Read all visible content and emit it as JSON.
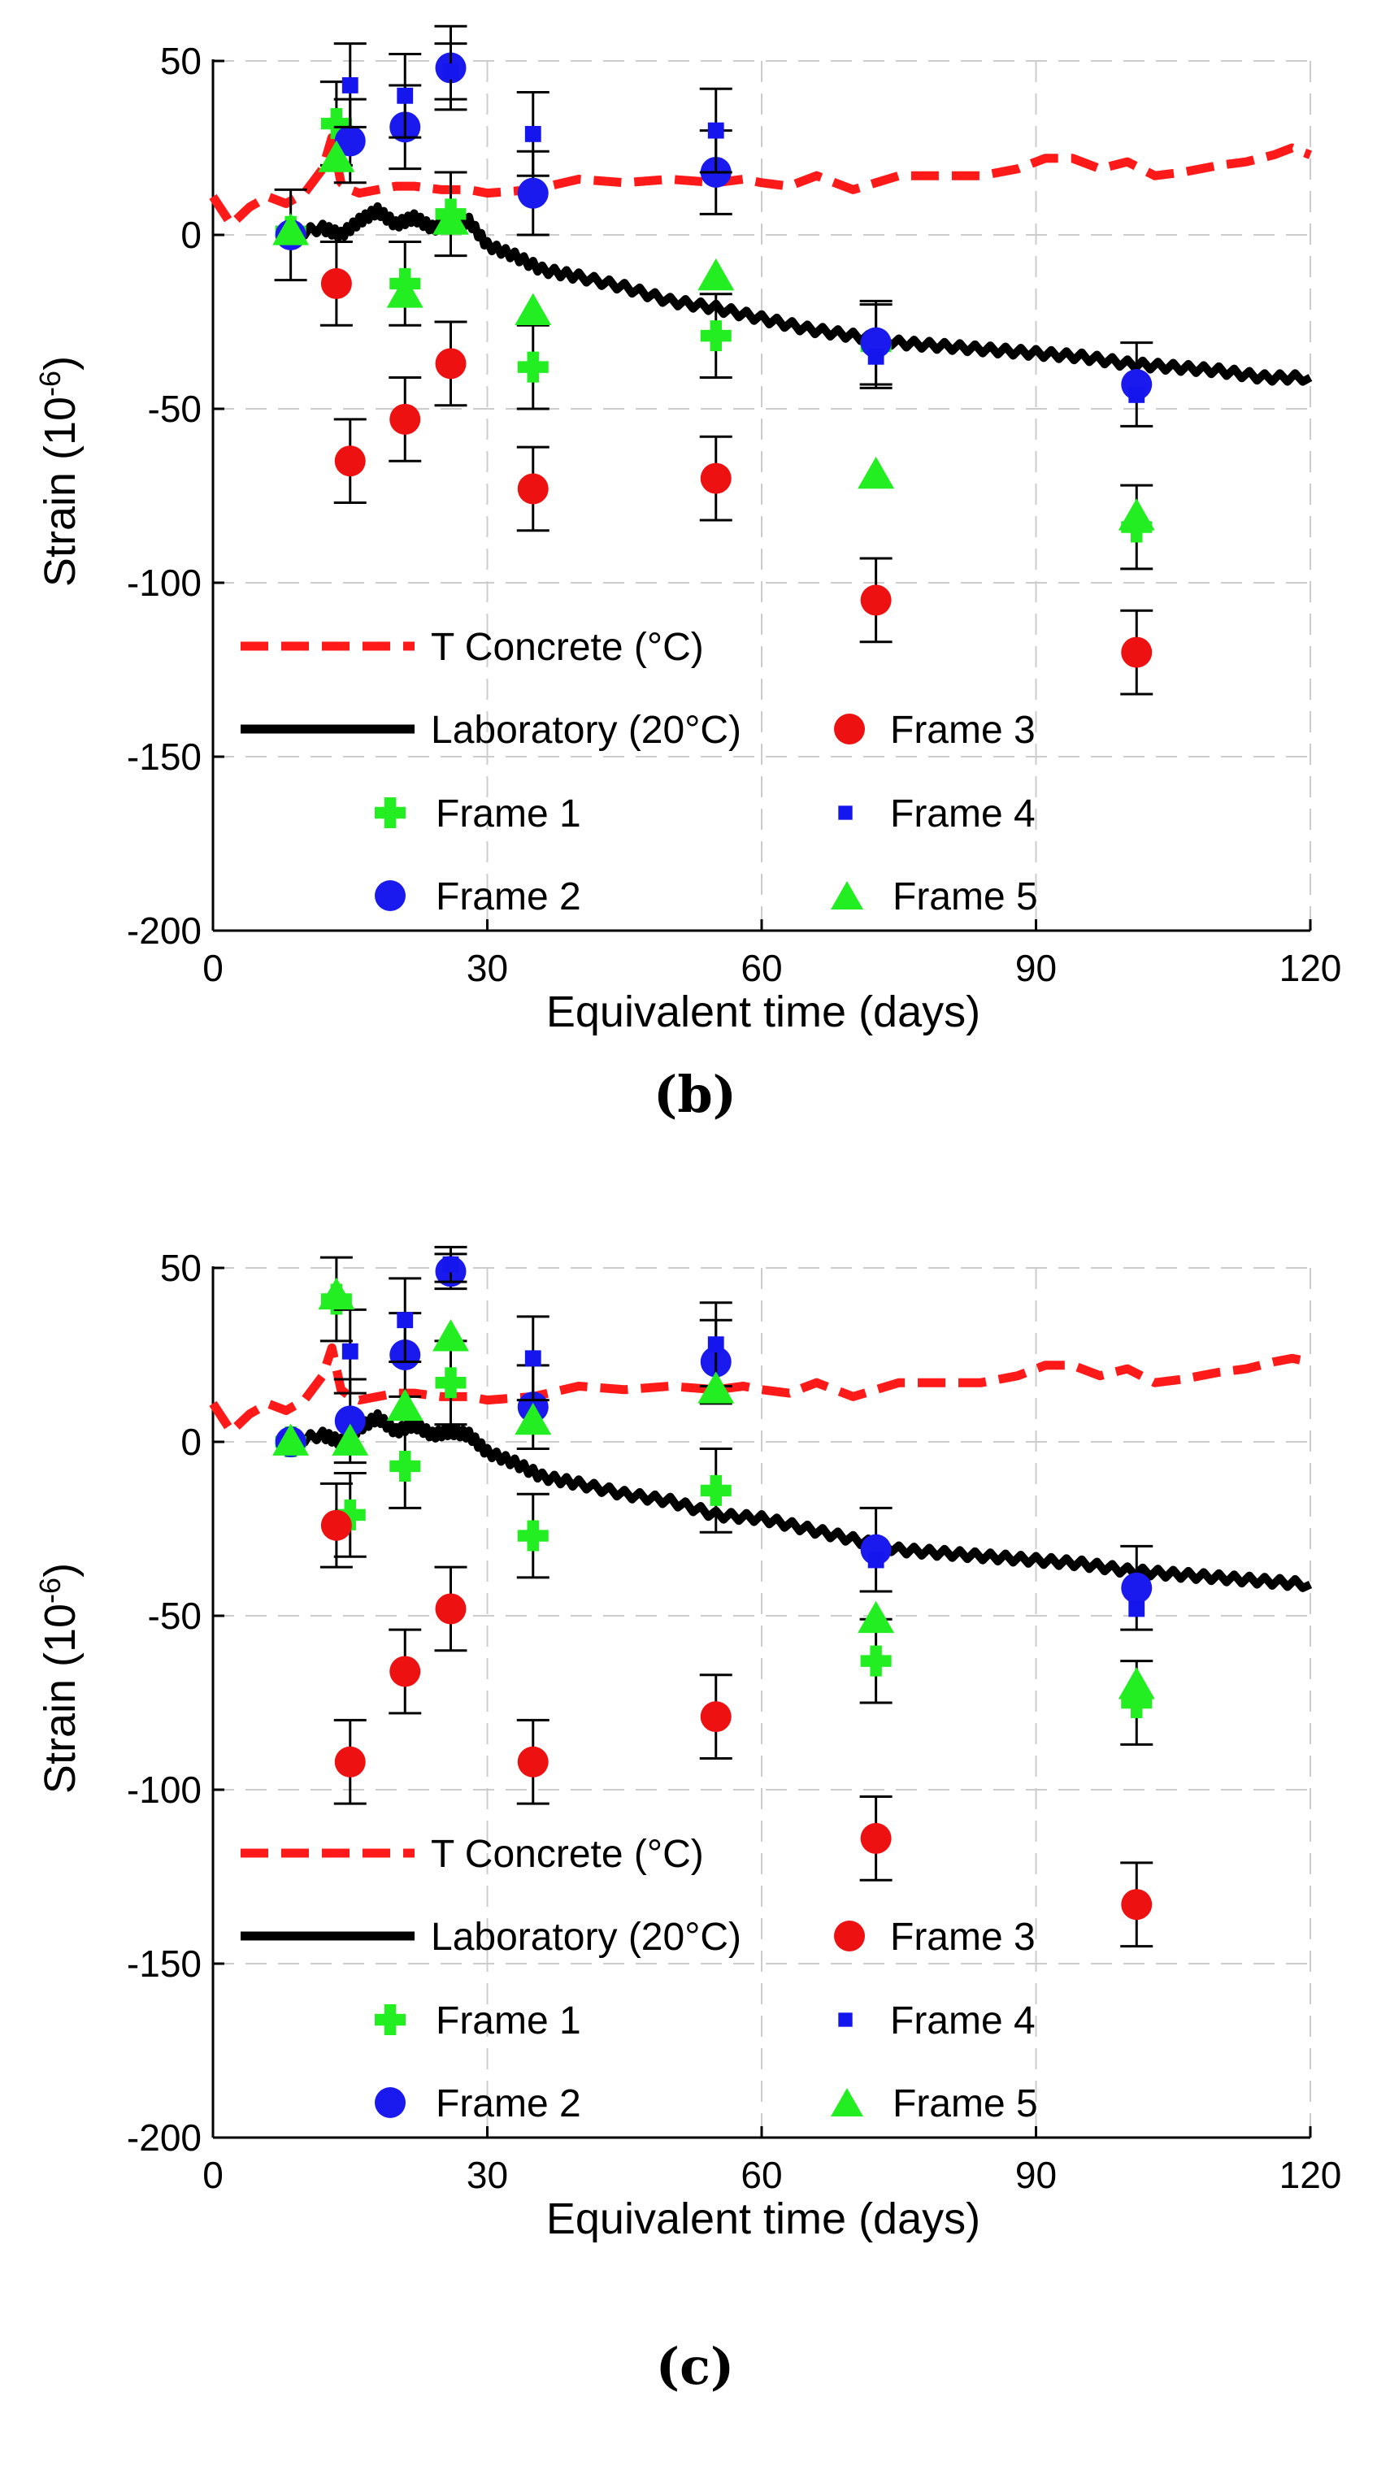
{
  "colors": {
    "temp": "#ff1a1a",
    "lab": "#000000",
    "frame1": "#22ee22",
    "frame2": "#1a1aee",
    "frame3": "#ee1111",
    "frame4": "#1515ee",
    "frame5": "#22ee22",
    "grid": "#cccccc",
    "error_bar": "#000000"
  },
  "chart_data": [
    {
      "panel_label": "(b)",
      "type": "scatter",
      "xlabel": "Equivalent time (days)",
      "ylabel_main": "Strain (10",
      "ylabel_sup": "-6",
      "ylabel_tail": ")",
      "xlim": [
        0,
        120
      ],
      "ylim": [
        -200,
        50
      ],
      "xticks": [
        0,
        30,
        60,
        90,
        120
      ],
      "yticks": [
        50,
        0,
        -50,
        -100,
        -150,
        -200
      ],
      "xtick_labels": [
        "0",
        "30",
        "60",
        "90",
        "120"
      ],
      "ytick_labels": [
        "50",
        "0",
        "-50",
        "-100",
        "-150",
        "-200"
      ],
      "grid": true,
      "legend": {
        "t_concrete": "T Concrete (°C)",
        "laboratory": "Laboratory (20°C)",
        "frame1": "Frame 1",
        "frame2": "Frame 2",
        "frame3": "Frame 3",
        "frame4": "Frame 4",
        "frame5": "Frame 5"
      },
      "temperature_curve": {
        "name": "T Concrete (°C)",
        "x": [
          0,
          2,
          4,
          6,
          8,
          10,
          12,
          13,
          14,
          15,
          16,
          18,
          20,
          22,
          25,
          28,
          30,
          35,
          40,
          45,
          50,
          55,
          58,
          60,
          63,
          66,
          70,
          75,
          80,
          84,
          88,
          91,
          94,
          97,
          100,
          103,
          106,
          110,
          113,
          116,
          118,
          120
        ],
        "y": [
          11,
          3,
          8,
          11,
          9,
          12,
          19,
          28,
          15,
          13,
          12,
          13,
          14,
          14,
          13,
          13,
          12,
          13,
          16,
          15,
          16,
          15,
          16,
          15,
          14,
          17,
          13,
          17,
          17,
          17,
          19,
          22,
          22,
          19,
          21,
          17,
          18,
          20,
          21,
          23,
          25,
          23
        ]
      },
      "laboratory_curve": {
        "name": "Laboratory (20°C)",
        "x": [
          8,
          12,
          14,
          16,
          18,
          20,
          22,
          24,
          26,
          28,
          30,
          33,
          36,
          40,
          45,
          50,
          55,
          60,
          65,
          70,
          75,
          80,
          85,
          90,
          95,
          100,
          105,
          110,
          115,
          120
        ],
        "y": [
          0,
          2,
          0,
          4,
          7,
          3,
          5,
          2,
          3,
          4,
          -3,
          -6,
          -10,
          -12,
          -15,
          -19,
          -21,
          -24,
          -27,
          -29,
          -31,
          -32,
          -33,
          -34,
          -35,
          -37,
          -38,
          -39,
          -41,
          -41
        ]
      },
      "series": [
        {
          "name": "Frame 1",
          "marker": "plus",
          "x": [
            8.5,
            13.5,
            21,
            26,
            35,
            55,
            72.5,
            101
          ],
          "y": [
            1,
            32,
            -14,
            6,
            -38,
            -29,
            -32,
            -84
          ],
          "err": [
            0,
            12,
            12,
            12,
            12,
            12,
            12,
            12
          ]
        },
        {
          "name": "Frame 2",
          "marker": "circle",
          "x": [
            8.5,
            15,
            21,
            26,
            35,
            55,
            72.5,
            101
          ],
          "y": [
            0,
            27,
            31,
            48,
            12,
            18,
            -31,
            -43
          ],
          "err": [
            13,
            12,
            12,
            12,
            12,
            12,
            12,
            12
          ]
        },
        {
          "name": "Frame 3",
          "marker": "circle",
          "x": [
            13.5,
            15,
            21,
            26,
            35,
            55,
            72.5,
            101
          ],
          "y": [
            -14,
            -65,
            -53,
            -37,
            -73,
            -70,
            -105,
            -120
          ],
          "err": [
            12,
            12,
            12,
            12,
            12,
            12,
            12,
            12
          ]
        },
        {
          "name": "Frame 4",
          "marker": "square",
          "x": [
            8.5,
            15,
            21,
            26,
            35,
            55,
            72.5,
            101
          ],
          "y": [
            1,
            43,
            40,
            47,
            29,
            30,
            -35,
            -46
          ],
          "err": [
            0,
            12,
            12,
            8,
            12,
            12,
            0,
            0
          ]
        },
        {
          "name": "Frame 5",
          "marker": "triangle",
          "x": [
            8.5,
            13.5,
            21,
            26,
            35,
            55,
            72.5,
            101
          ],
          "y": [
            1,
            22,
            -17,
            4,
            -22,
            -12,
            -69,
            -81
          ],
          "err": [
            0,
            0,
            0,
            0,
            0,
            0,
            0,
            0
          ]
        }
      ]
    },
    {
      "panel_label": "(c)",
      "type": "scatter",
      "xlabel": "Equivalent time (days)",
      "ylabel_main": "Strain (10",
      "ylabel_sup": "-6",
      "ylabel_tail": ")",
      "xlim": [
        0,
        120
      ],
      "ylim": [
        -200,
        50
      ],
      "xticks": [
        0,
        30,
        60,
        90,
        120
      ],
      "yticks": [
        50,
        0,
        -50,
        -100,
        -150,
        -200
      ],
      "xtick_labels": [
        "0",
        "30",
        "60",
        "90",
        "120"
      ],
      "ytick_labels": [
        "50",
        "0",
        "-50",
        "-100",
        "-150",
        "-200"
      ],
      "grid": true,
      "legend": {
        "t_concrete": "T Concrete (°C)",
        "laboratory": "Laboratory (20°C)",
        "frame1": "Frame 1",
        "frame2": "Frame 2",
        "frame3": "Frame 3",
        "frame4": "Frame 4",
        "frame5": "Frame 5"
      },
      "temperature_curve": {
        "name": "T Concrete (°C)",
        "x": [
          0,
          2,
          4,
          6,
          8,
          10,
          12,
          13,
          14,
          15,
          16,
          18,
          20,
          22,
          25,
          28,
          30,
          35,
          40,
          45,
          50,
          55,
          58,
          60,
          63,
          66,
          70,
          75,
          80,
          84,
          88,
          91,
          94,
          97,
          100,
          103,
          106,
          110,
          113,
          116,
          118,
          120
        ],
        "y": [
          11,
          3,
          8,
          11,
          9,
          12,
          19,
          27,
          15,
          13,
          12,
          13,
          14,
          14,
          13,
          13,
          12,
          13,
          16,
          15,
          16,
          15,
          16,
          15,
          14,
          17,
          13,
          17,
          17,
          17,
          19,
          22,
          22,
          19,
          21,
          17,
          18,
          20,
          21,
          23,
          24,
          23
        ]
      },
      "laboratory_curve": {
        "name": "Laboratory (20°C)",
        "x": [
          8,
          12,
          14,
          16,
          18,
          20,
          22,
          24,
          26,
          28,
          30,
          33,
          36,
          40,
          45,
          50,
          55,
          60,
          65,
          70,
          75,
          80,
          85,
          90,
          95,
          100,
          105,
          110,
          115,
          120
        ],
        "y": [
          0,
          2,
          0,
          4,
          7,
          3,
          5,
          2,
          3,
          2,
          -3,
          -6,
          -10,
          -12,
          -15,
          -17,
          -21,
          -22,
          -25,
          -28,
          -31,
          -32,
          -33,
          -34,
          -35,
          -37,
          -38,
          -39,
          -40,
          -41
        ]
      },
      "series": [
        {
          "name": "Frame 1",
          "marker": "plus",
          "x": [
            8.5,
            13.5,
            15,
            21,
            26,
            35,
            55,
            72.5,
            101
          ],
          "y": [
            0,
            41,
            -21,
            -7,
            17,
            -27,
            -14,
            -63,
            -75
          ],
          "err": [
            0,
            12,
            12,
            12,
            12,
            12,
            12,
            12,
            12
          ]
        },
        {
          "name": "Frame 2",
          "marker": "circle",
          "x": [
            8.5,
            15,
            21,
            26,
            35,
            55,
            72.5,
            101
          ],
          "y": [
            0,
            6,
            25,
            49,
            10,
            23,
            -31,
            -42
          ],
          "err": [
            0,
            12,
            12,
            5,
            12,
            12,
            12,
            12
          ]
        },
        {
          "name": "Frame 3",
          "marker": "circle",
          "x": [
            13.5,
            15,
            21,
            26,
            35,
            55,
            72.5,
            101
          ],
          "y": [
            -24,
            -92,
            -66,
            -48,
            -92,
            -79,
            -114,
            -133
          ],
          "err": [
            12,
            12,
            12,
            12,
            12,
            12,
            12,
            12
          ]
        },
        {
          "name": "Frame 4",
          "marker": "square",
          "x": [
            8.5,
            15,
            21,
            26,
            35,
            55,
            72.5,
            101
          ],
          "y": [
            0,
            26,
            35,
            51,
            24,
            28,
            -34,
            -48
          ],
          "err": [
            0,
            12,
            12,
            5,
            12,
            12,
            0,
            0
          ]
        },
        {
          "name": "Frame 5",
          "marker": "triangle",
          "x": [
            8.5,
            13.5,
            15,
            21,
            26,
            35,
            55,
            72.5,
            101
          ],
          "y": [
            0,
            42,
            0,
            10,
            30,
            6,
            15,
            -51,
            -70
          ],
          "err": [
            0,
            0,
            0,
            0,
            0,
            0,
            0,
            0,
            0
          ]
        }
      ]
    }
  ]
}
